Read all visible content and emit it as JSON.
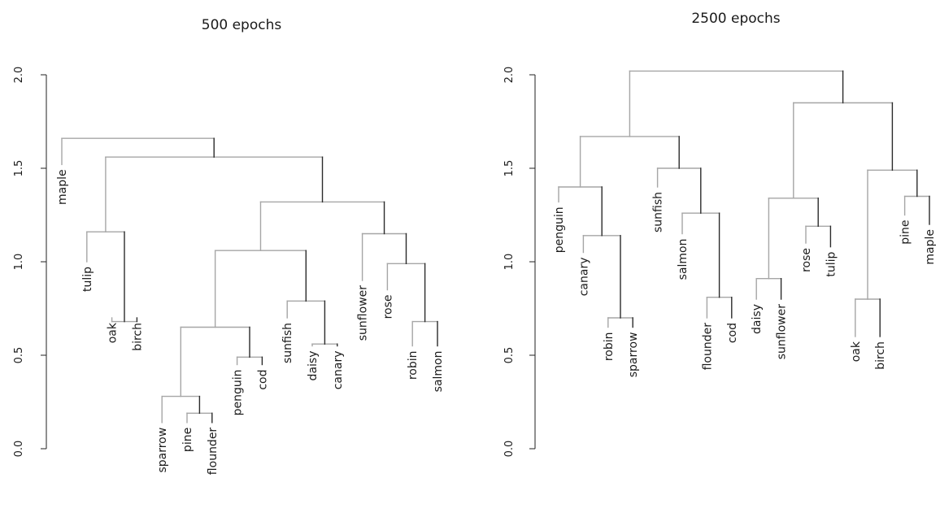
{
  "chart_data": [
    {
      "type": "dendrogram",
      "title": "500 epochs",
      "ylim": [
        0,
        2
      ],
      "yticks": [
        "0.0",
        "0.5",
        "1.0",
        "1.5",
        "2.0"
      ],
      "ytick_values": [
        0,
        0.5,
        1,
        1.5,
        2
      ],
      "grid": false,
      "leaves": [
        "maple",
        "tulip",
        "oak",
        "birch",
        "sparrow",
        "pine",
        "flounder",
        "penguin",
        "cod",
        "sunfish",
        "daisy",
        "canary",
        "sunflower",
        "rose",
        "robin",
        "salmon"
      ],
      "leaf_heights": [
        1.52,
        1.0,
        0.7,
        0.7,
        0.14,
        0.14,
        0.14,
        0.45,
        0.45,
        0.7,
        0.55,
        0.55,
        0.9,
        0.85,
        0.55,
        0.55
      ],
      "tree": {
        "h": 1.66,
        "c": [
          {
            "leaf": "maple"
          },
          {
            "h": 1.56,
            "c": [
              {
                "h": 1.16,
                "c": [
                  {
                    "leaf": "tulip"
                  },
                  {
                    "h": 0.68,
                    "c": [
                      {
                        "leaf": "oak"
                      },
                      {
                        "leaf": "birch"
                      }
                    ]
                  }
                ]
              },
              {
                "h": 1.32,
                "c": [
                  {
                    "h": 1.06,
                    "c": [
                      {
                        "h": 0.65,
                        "c": [
                          {
                            "h": 0.28,
                            "c": [
                              {
                                "leaf": "sparrow"
                              },
                              {
                                "h": 0.19,
                                "c": [
                                  {
                                    "leaf": "pine"
                                  },
                                  {
                                    "leaf": "flounder"
                                  }
                                ]
                              }
                            ]
                          },
                          {
                            "h": 0.49,
                            "c": [
                              {
                                "leaf": "penguin"
                              },
                              {
                                "leaf": "cod"
                              }
                            ]
                          }
                        ]
                      },
                      {
                        "h": 0.79,
                        "c": [
                          {
                            "leaf": "sunfish"
                          },
                          {
                            "h": 0.56,
                            "c": [
                              {
                                "leaf": "daisy"
                              },
                              {
                                "leaf": "canary"
                              }
                            ]
                          }
                        ]
                      }
                    ]
                  },
                  {
                    "h": 1.15,
                    "c": [
                      {
                        "leaf": "sunflower"
                      },
                      {
                        "h": 0.99,
                        "c": [
                          {
                            "leaf": "rose"
                          },
                          {
                            "h": 0.68,
                            "c": [
                              {
                                "leaf": "robin"
                              },
                              {
                                "leaf": "salmon"
                              }
                            ]
                          }
                        ]
                      }
                    ]
                  }
                ]
              }
            ]
          }
        ]
      }
    },
    {
      "type": "dendrogram",
      "title": "2500 epochs",
      "ylim": [
        0,
        2
      ],
      "yticks": [
        "0.0",
        "0.5",
        "1.0",
        "1.5",
        "2.0"
      ],
      "ytick_values": [
        0,
        0.5,
        1,
        1.5,
        2
      ],
      "grid": false,
      "leaves": [
        "penguin",
        "canary",
        "robin",
        "sparrow",
        "sunfish",
        "salmon",
        "flounder",
        "cod",
        "daisy",
        "sunflower",
        "rose",
        "tulip",
        "oak",
        "birch",
        "pine",
        "maple"
      ],
      "leaf_heights": [
        1.32,
        1.05,
        0.65,
        0.65,
        1.4,
        1.15,
        0.7,
        0.7,
        0.8,
        0.8,
        1.1,
        1.08,
        0.6,
        0.6,
        1.25,
        1.2
      ],
      "tree": {
        "h": 2.02,
        "c": [
          {
            "h": 1.67,
            "c": [
              {
                "h": 1.4,
                "c": [
                  {
                    "leaf": "penguin"
                  },
                  {
                    "h": 1.14,
                    "c": [
                      {
                        "leaf": "canary"
                      },
                      {
                        "h": 0.7,
                        "c": [
                          {
                            "leaf": "robin"
                          },
                          {
                            "leaf": "sparrow"
                          }
                        ]
                      }
                    ]
                  }
                ]
              },
              {
                "h": 1.5,
                "c": [
                  {
                    "leaf": "sunfish"
                  },
                  {
                    "h": 1.26,
                    "c": [
                      {
                        "leaf": "salmon"
                      },
                      {
                        "h": 0.81,
                        "c": [
                          {
                            "leaf": "flounder"
                          },
                          {
                            "leaf": "cod"
                          }
                        ]
                      }
                    ]
                  }
                ]
              }
            ]
          },
          {
            "h": 1.85,
            "c": [
              {
                "h": 1.34,
                "c": [
                  {
                    "h": 0.91,
                    "c": [
                      {
                        "leaf": "daisy"
                      },
                      {
                        "leaf": "sunflower"
                      }
                    ]
                  },
                  {
                    "h": 1.19,
                    "c": [
                      {
                        "leaf": "rose"
                      },
                      {
                        "leaf": "tulip"
                      }
                    ]
                  }
                ]
              },
              {
                "h": 1.49,
                "c": [
                  {
                    "h": 0.8,
                    "c": [
                      {
                        "leaf": "oak"
                      },
                      {
                        "leaf": "birch"
                      }
                    ]
                  },
                  {
                    "h": 1.35,
                    "c": [
                      {
                        "leaf": "pine"
                      },
                      {
                        "leaf": "maple"
                      }
                    ]
                  }
                ]
              }
            ]
          }
        ]
      }
    }
  ]
}
